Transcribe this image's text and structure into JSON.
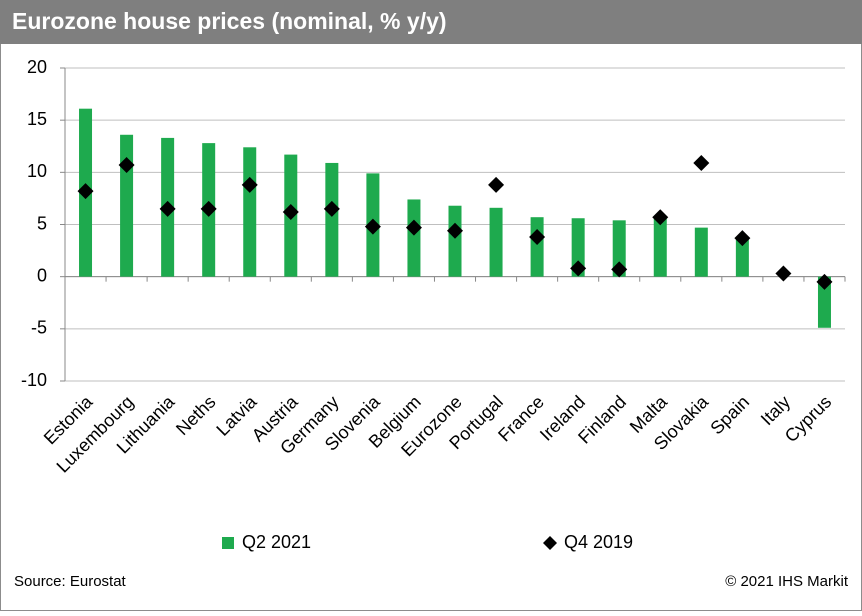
{
  "chart_data": {
    "type": "bar",
    "title": "Eurozone house prices (nominal, % y/y)",
    "categories": [
      "Estonia",
      "Luxembourg",
      "Lithuania",
      "Neths",
      "Latvia",
      "Austria",
      "Germany",
      "Slovenia",
      "Belgium",
      "Eurozone",
      "Portugal",
      "France",
      "Ireland",
      "Finland",
      "Malta",
      "Slovakia",
      "Spain",
      "Italy",
      "Cyprus"
    ],
    "series": [
      {
        "name": "Q2 2021",
        "type": "bar",
        "color": "#1eaa4e",
        "values": [
          16.1,
          13.6,
          13.3,
          12.8,
          12.4,
          11.7,
          10.9,
          9.9,
          7.4,
          6.8,
          6.6,
          5.7,
          5.6,
          5.4,
          5.7,
          4.7,
          3.8,
          null,
          -4.9
        ]
      },
      {
        "name": "Q4 2019",
        "type": "scatter",
        "color": "#000000",
        "values": [
          8.2,
          10.7,
          6.5,
          6.5,
          8.8,
          6.2,
          6.5,
          4.8,
          4.7,
          4.4,
          8.8,
          3.8,
          0.8,
          0.7,
          5.7,
          10.9,
          3.7,
          0.3,
          -0.5
        ]
      }
    ],
    "ylim": [
      -10,
      20
    ],
    "yticks": [
      -10,
      -5,
      0,
      5,
      10,
      15,
      20
    ],
    "grid": true,
    "legend": "bottom",
    "source": "Source: Eurostat",
    "copyright": "© 2021 IHS Markit"
  }
}
